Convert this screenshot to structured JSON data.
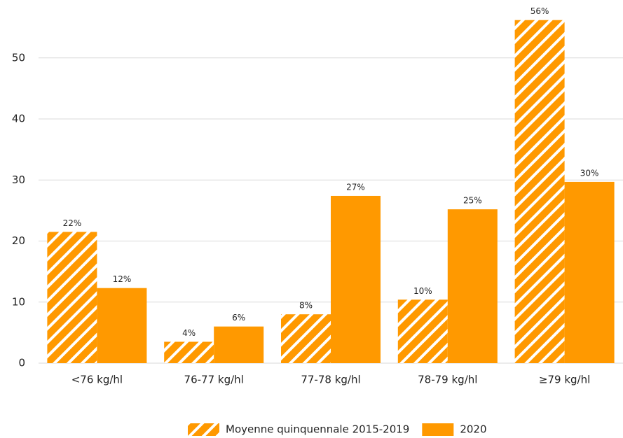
{
  "chart_data": {
    "type": "bar",
    "categories": [
      "<76 kg/hl",
      "76-77 kg/hl",
      "77-78 kg/hl",
      "78-79 kg/hl",
      "≥79 kg/hl"
    ],
    "series": [
      {
        "name": "Moyenne quinquennale 2015-2019",
        "color": "#ff9900",
        "hatch": true,
        "values": [
          21.5,
          3.5,
          8,
          10.4,
          56.2
        ],
        "value_labels": [
          "22%",
          "4%",
          "8%",
          "10%",
          "56%"
        ]
      },
      {
        "name": "2020",
        "color": "#ff9900",
        "hatch": false,
        "values": [
          12.3,
          6,
          27.4,
          25.2,
          29.7
        ],
        "value_labels": [
          "12%",
          "6%",
          "27%",
          "25%",
          "30%"
        ]
      }
    ],
    "ylim": [
      0,
      58
    ],
    "yticks": [
      0,
      10,
      20,
      30,
      40,
      50
    ],
    "grid": true,
    "legend": "bottom"
  }
}
